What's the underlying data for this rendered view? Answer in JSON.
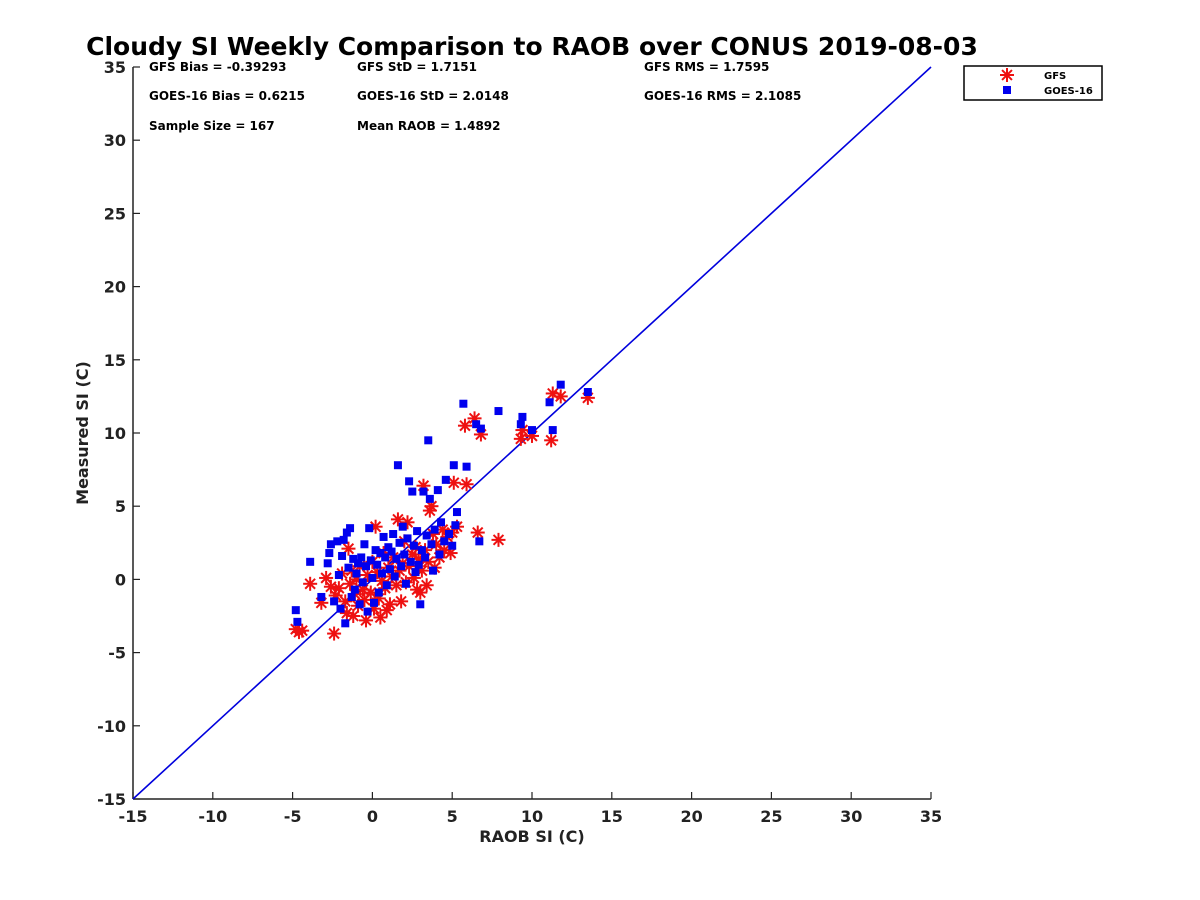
{
  "chart_data": {
    "type": "scatter",
    "title": "Cloudy SI Weekly Comparison to RAOB over CONUS 2019-08-03",
    "xlabel": "RAOB SI (C)",
    "ylabel": "Measured SI (C)",
    "xlim": [
      -15,
      35
    ],
    "ylim": [
      -15,
      35
    ],
    "x_ticks": [
      "-15",
      "-10",
      "-5",
      "0",
      "5",
      "10",
      "15",
      "20",
      "25",
      "30",
      "35"
    ],
    "y_ticks": [
      "-15",
      "-10",
      "-5",
      "0",
      "5",
      "10",
      "15",
      "20",
      "25",
      "30",
      "35"
    ],
    "grid": false,
    "legend_position": "outside-top-right",
    "reference_line": {
      "x": [
        -15,
        35
      ],
      "y": [
        -15,
        35
      ],
      "color": "#0000dd"
    },
    "stats": [
      {
        "label": "GFS Bias = -0.39293"
      },
      {
        "label": "GFS StD = 1.7151"
      },
      {
        "label": "GFS RMS = 1.7595"
      },
      {
        "label": "GOES-16 Bias = 0.6215"
      },
      {
        "label": "GOES-16 StD = 2.0148"
      },
      {
        "label": "GOES-16 RMS = 2.1085"
      },
      {
        "label": "Sample Size = 167"
      },
      {
        "label": "Mean RAOB = 1.4892"
      }
    ],
    "series": [
      {
        "name": "GFS",
        "marker": "asterisk",
        "color": "#ee1111",
        "points": [
          [
            -4.8,
            -3.4
          ],
          [
            -4.6,
            -3.6
          ],
          [
            -4.4,
            -3.5
          ],
          [
            -3.9,
            -0.3
          ],
          [
            -3.2,
            -1.6
          ],
          [
            -2.9,
            0.1
          ],
          [
            -2.6,
            -0.5
          ],
          [
            -2.4,
            -3.7
          ],
          [
            -2.3,
            -1.1
          ],
          [
            -2.1,
            -0.6
          ],
          [
            -1.9,
            0.4
          ],
          [
            -1.7,
            -1.5
          ],
          [
            -1.6,
            -2.3
          ],
          [
            -1.5,
            2.1
          ],
          [
            -1.4,
            -0.3
          ],
          [
            -1.3,
            0.6
          ],
          [
            -1.2,
            -2.5
          ],
          [
            -1.1,
            -1.0
          ],
          [
            -1.0,
            0.0
          ],
          [
            -0.9,
            -1.8
          ],
          [
            -0.8,
            0.9
          ],
          [
            -0.6,
            -0.7
          ],
          [
            -0.5,
            -1.4
          ],
          [
            -0.4,
            -2.8
          ],
          [
            -0.3,
            0.3
          ],
          [
            -0.1,
            -0.9
          ],
          [
            0.0,
            1.2
          ],
          [
            0.1,
            -2.0
          ],
          [
            0.2,
            3.6
          ],
          [
            0.3,
            0.5
          ],
          [
            0.4,
            -1.3
          ],
          [
            0.5,
            -2.6
          ],
          [
            0.6,
            -0.1
          ],
          [
            0.7,
            1.8
          ],
          [
            0.8,
            -0.6
          ],
          [
            0.9,
            -2.1
          ],
          [
            1.0,
            0.8
          ],
          [
            1.1,
            -1.7
          ],
          [
            1.2,
            0.2
          ],
          [
            1.3,
            1.5
          ],
          [
            1.5,
            -0.4
          ],
          [
            1.6,
            4.1
          ],
          [
            1.7,
            0.6
          ],
          [
            1.8,
            -1.5
          ],
          [
            1.9,
            1.1
          ],
          [
            2.0,
            2.6
          ],
          [
            2.1,
            -0.2
          ],
          [
            2.2,
            3.9
          ],
          [
            2.3,
            0.9
          ],
          [
            2.5,
            1.7
          ],
          [
            2.6,
            0.1
          ],
          [
            2.7,
            2.2
          ],
          [
            2.8,
            -0.7
          ],
          [
            2.9,
            1.4
          ],
          [
            3.0,
            -0.9
          ],
          [
            3.1,
            0.6
          ],
          [
            3.2,
            6.4
          ],
          [
            3.3,
            2.0
          ],
          [
            3.4,
            -0.4
          ],
          [
            3.5,
            1.2
          ],
          [
            3.6,
            4.7
          ],
          [
            3.7,
            5.0
          ],
          [
            3.8,
            3.1
          ],
          [
            3.9,
            0.8
          ],
          [
            4.0,
            2.4
          ],
          [
            4.2,
            1.5
          ],
          [
            4.4,
            3.4
          ],
          [
            4.5,
            2.0
          ],
          [
            4.7,
            2.9
          ],
          [
            4.9,
            1.8
          ],
          [
            5.0,
            3.2
          ],
          [
            5.1,
            6.6
          ],
          [
            5.3,
            3.6
          ],
          [
            5.8,
            10.5
          ],
          [
            5.9,
            6.5
          ],
          [
            6.4,
            11.0
          ],
          [
            6.6,
            3.2
          ],
          [
            6.8,
            9.9
          ],
          [
            7.9,
            2.7
          ],
          [
            9.3,
            9.6
          ],
          [
            9.4,
            10.2
          ],
          [
            10.0,
            9.8
          ],
          [
            11.2,
            9.5
          ],
          [
            11.3,
            12.7
          ],
          [
            11.8,
            12.5
          ],
          [
            13.5,
            12.4
          ]
        ]
      },
      {
        "name": "GOES-16",
        "marker": "square",
        "color": "#0000ee",
        "points": [
          [
            -4.8,
            -2.1
          ],
          [
            -4.7,
            -2.9
          ],
          [
            -3.9,
            1.2
          ],
          [
            -3.2,
            -1.2
          ],
          [
            -2.8,
            1.1
          ],
          [
            -2.7,
            1.8
          ],
          [
            -2.6,
            2.4
          ],
          [
            -2.4,
            -1.5
          ],
          [
            -2.2,
            2.6
          ],
          [
            -2.1,
            0.3
          ],
          [
            -2.0,
            -2.0
          ],
          [
            -1.9,
            1.6
          ],
          [
            -1.8,
            2.7
          ],
          [
            -1.7,
            -3.0
          ],
          [
            -1.6,
            3.2
          ],
          [
            -1.5,
            0.8
          ],
          [
            -1.4,
            3.5
          ],
          [
            -1.3,
            -1.2
          ],
          [
            -1.2,
            1.4
          ],
          [
            -1.1,
            -0.7
          ],
          [
            -1.0,
            0.4
          ],
          [
            -0.9,
            1.1
          ],
          [
            -0.8,
            -1.7
          ],
          [
            -0.7,
            1.5
          ],
          [
            -0.6,
            -0.2
          ],
          [
            -0.5,
            2.4
          ],
          [
            -0.4,
            0.9
          ],
          [
            -0.3,
            -2.2
          ],
          [
            -0.2,
            3.5
          ],
          [
            -0.1,
            1.3
          ],
          [
            0.0,
            0.1
          ],
          [
            0.1,
            -1.6
          ],
          [
            0.2,
            2.0
          ],
          [
            0.3,
            1.0
          ],
          [
            0.4,
            -0.9
          ],
          [
            0.5,
            1.8
          ],
          [
            0.6,
            0.4
          ],
          [
            0.7,
            2.9
          ],
          [
            0.8,
            1.5
          ],
          [
            0.9,
            -0.4
          ],
          [
            1.0,
            2.2
          ],
          [
            1.1,
            0.7
          ],
          [
            1.2,
            1.9
          ],
          [
            1.3,
            3.1
          ],
          [
            1.4,
            0.2
          ],
          [
            1.5,
            1.4
          ],
          [
            1.6,
            7.8
          ],
          [
            1.7,
            2.5
          ],
          [
            1.8,
            0.9
          ],
          [
            1.9,
            3.6
          ],
          [
            2.0,
            1.7
          ],
          [
            2.1,
            -0.3
          ],
          [
            2.2,
            2.8
          ],
          [
            2.3,
            6.7
          ],
          [
            2.4,
            1.2
          ],
          [
            2.5,
            6.0
          ],
          [
            2.6,
            2.3
          ],
          [
            2.7,
            0.5
          ],
          [
            2.8,
            3.3
          ],
          [
            2.9,
            1.0
          ],
          [
            3.0,
            -1.7
          ],
          [
            3.1,
            2.0
          ],
          [
            3.2,
            6.0
          ],
          [
            3.3,
            1.5
          ],
          [
            3.4,
            3.0
          ],
          [
            3.5,
            9.5
          ],
          [
            3.6,
            5.5
          ],
          [
            3.7,
            2.4
          ],
          [
            3.8,
            0.6
          ],
          [
            3.9,
            3.4
          ],
          [
            4.1,
            6.1
          ],
          [
            4.2,
            1.7
          ],
          [
            4.3,
            3.9
          ],
          [
            4.5,
            2.6
          ],
          [
            4.6,
            6.8
          ],
          [
            4.8,
            3.1
          ],
          [
            5.0,
            2.3
          ],
          [
            5.1,
            7.8
          ],
          [
            5.2,
            3.7
          ],
          [
            5.3,
            4.6
          ],
          [
            5.7,
            12.0
          ],
          [
            5.9,
            7.7
          ],
          [
            6.5,
            10.6
          ],
          [
            6.7,
            2.6
          ],
          [
            6.8,
            10.3
          ],
          [
            7.9,
            11.5
          ],
          [
            9.3,
            10.6
          ],
          [
            9.4,
            11.1
          ],
          [
            10.0,
            10.2
          ],
          [
            11.1,
            12.1
          ],
          [
            11.3,
            10.2
          ],
          [
            11.8,
            13.3
          ],
          [
            13.5,
            12.8
          ]
        ]
      }
    ]
  }
}
